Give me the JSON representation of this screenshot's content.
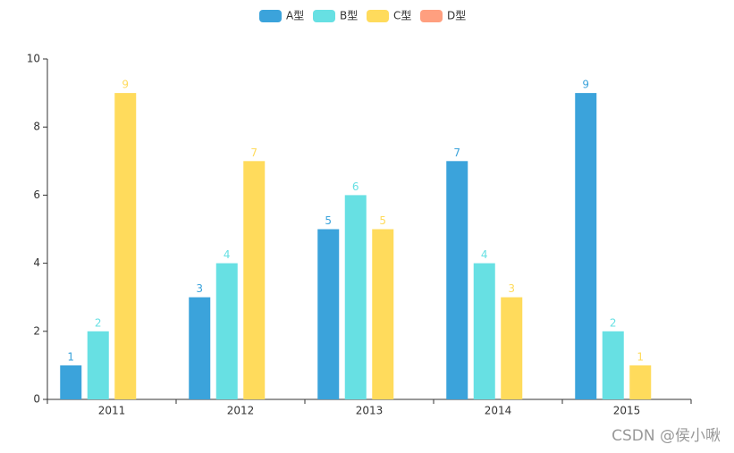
{
  "chart_data": {
    "type": "bar",
    "categories": [
      "2011",
      "2012",
      "2013",
      "2014",
      "2015"
    ],
    "series": [
      {
        "name": "A型",
        "color": "#3ba3db",
        "values": [
          1,
          3,
          5,
          7,
          9
        ]
      },
      {
        "name": "B型",
        "color": "#67e0e3",
        "values": [
          2,
          4,
          6,
          4,
          2
        ]
      },
      {
        "name": "C型",
        "color": "#ffdb5c",
        "values": [
          9,
          7,
          5,
          3,
          1
        ]
      },
      {
        "name": "D型",
        "color": "#ff9f7f",
        "values": [
          null,
          null,
          null,
          null,
          null
        ]
      }
    ],
    "ylim": [
      0,
      10
    ],
    "yticks": [
      0,
      2,
      4,
      6,
      8,
      10
    ],
    "grid": false,
    "legend": "top",
    "watermark": "CSDN @侯小啾"
  }
}
